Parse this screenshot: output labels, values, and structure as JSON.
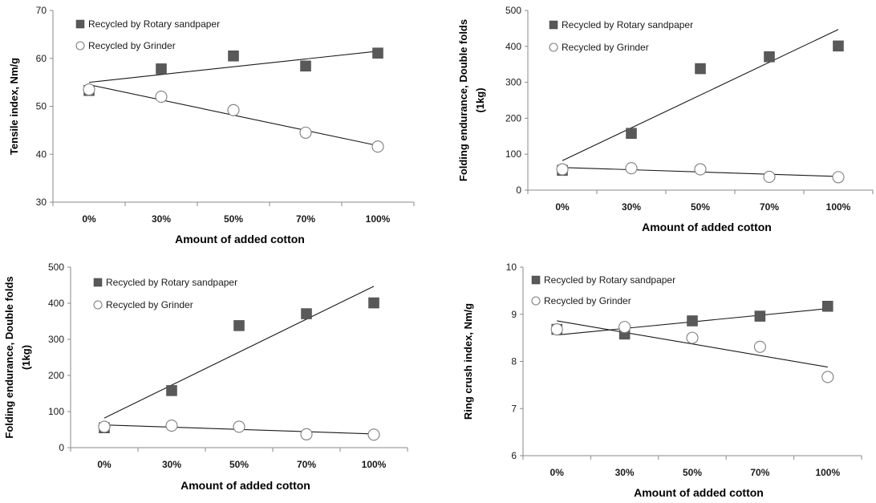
{
  "chart_data": [
    {
      "type": "scatter",
      "categories": [
        "0%",
        "30%",
        "50%",
        "70%",
        "100%"
      ],
      "xlabel": "Amount of added cotton",
      "ylabel": "Tensile index, Nm/g",
      "ylim": [
        30,
        70
      ],
      "yticks": [
        30,
        40,
        50,
        60,
        70
      ],
      "legend_placement": "top-left",
      "series": [
        {
          "name": "Recycled by Rotary sandpaper",
          "marker": "square",
          "values": [
            53.3,
            57.8,
            60.5,
            58.4,
            61.1
          ],
          "trend": [
            55.0,
            61.5
          ]
        },
        {
          "name": "Recycled by Grinder",
          "marker": "circle",
          "values": [
            53.5,
            52.0,
            49.2,
            44.5,
            41.6
          ],
          "trend": [
            54.5,
            41.8
          ]
        }
      ]
    },
    {
      "type": "scatter",
      "categories": [
        "0%",
        "30%",
        "50%",
        "70%",
        "100%"
      ],
      "xlabel": "Amount of added cotton",
      "ylabel": "Folding endurance, Double folds (1kg)",
      "ylim": [
        0,
        500
      ],
      "yticks": [
        0,
        100,
        200,
        300,
        400,
        500
      ],
      "legend_placement": "top-left",
      "series": [
        {
          "name": "Recycled by Rotary sandpaper",
          "marker": "square",
          "values": [
            55,
            158,
            338,
            371,
            401
          ],
          "trend": [
            82,
            447
          ]
        },
        {
          "name": "Recycled by Grinder",
          "marker": "circle",
          "values": [
            58,
            61,
            58,
            37,
            36
          ],
          "trend": [
            63,
            38
          ]
        }
      ]
    },
    {
      "type": "scatter",
      "categories": [
        "0%",
        "30%",
        "50%",
        "70%",
        "100%"
      ],
      "xlabel": "Amount of added cotton",
      "ylabel": "Folding endurance, Double folds (1kg)",
      "ylim": [
        0,
        500
      ],
      "yticks": [
        0,
        100,
        200,
        300,
        400,
        500
      ],
      "legend_placement": "top-left",
      "series": [
        {
          "name": "Recycled by Rotary sandpaper",
          "marker": "square",
          "values": [
            55,
            158,
            338,
            371,
            401
          ],
          "trend": [
            82,
            447
          ]
        },
        {
          "name": "Recycled by Grinder",
          "marker": "circle",
          "values": [
            58,
            61,
            58,
            37,
            36
          ],
          "trend": [
            63,
            38
          ]
        }
      ]
    },
    {
      "type": "scatter",
      "categories": [
        "0%",
        "30%",
        "50%",
        "70%",
        "100%"
      ],
      "xlabel": "Amount of added cotton",
      "ylabel": "Ring crush index, Nm/g",
      "ylim": [
        6,
        10
      ],
      "yticks": [
        6,
        7,
        8,
        9,
        10
      ],
      "legend_placement": "top-left",
      "series": [
        {
          "name": "Recycled by Rotary sandpaper",
          "marker": "square",
          "values": [
            8.68,
            8.58,
            8.86,
            8.96,
            9.17
          ],
          "trend": [
            8.56,
            9.12
          ]
        },
        {
          "name": "Recycled by Grinder",
          "marker": "circle",
          "values": [
            8.68,
            8.73,
            8.5,
            8.31,
            7.67
          ],
          "trend": [
            8.86,
            7.88
          ]
        }
      ]
    }
  ]
}
